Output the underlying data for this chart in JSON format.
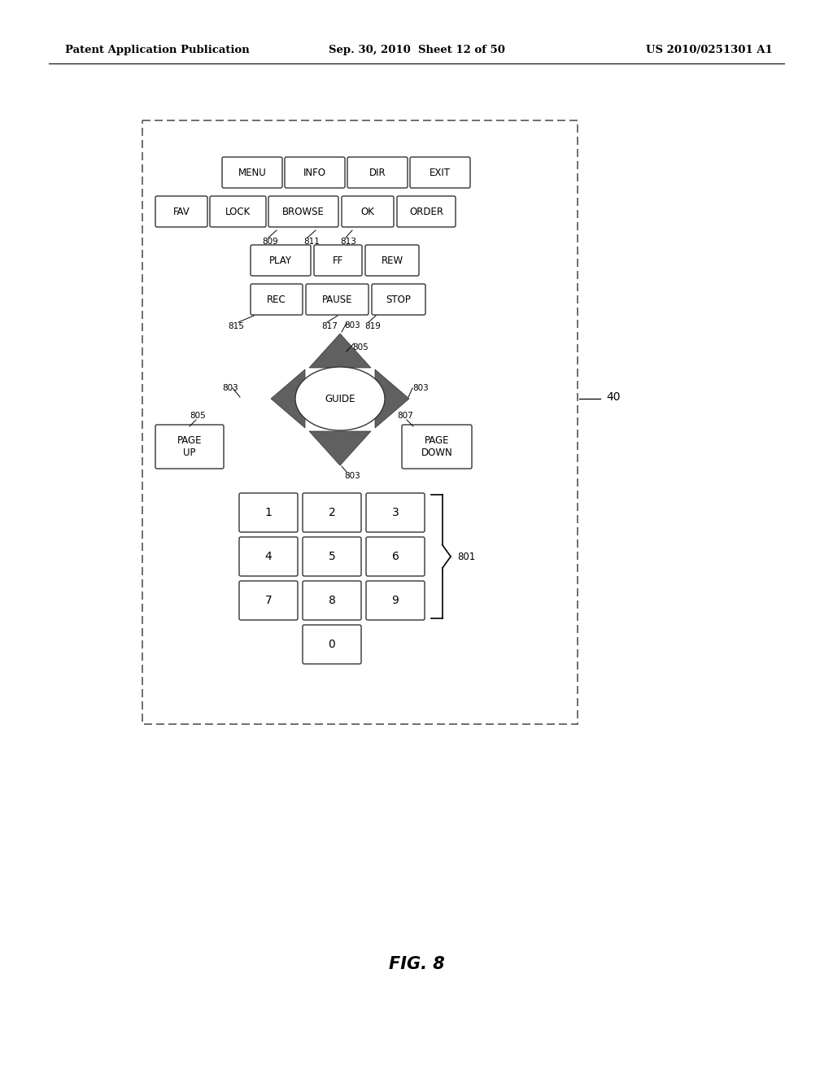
{
  "bg_color": "#ffffff",
  "header_left": "Patent Application Publication",
  "header_mid": "Sep. 30, 2010  Sheet 12 of 50",
  "header_right": "US 2010/0251301 A1",
  "footer_label": "FIG. 8",
  "arrow_color": "#555555",
  "label_40": "40"
}
